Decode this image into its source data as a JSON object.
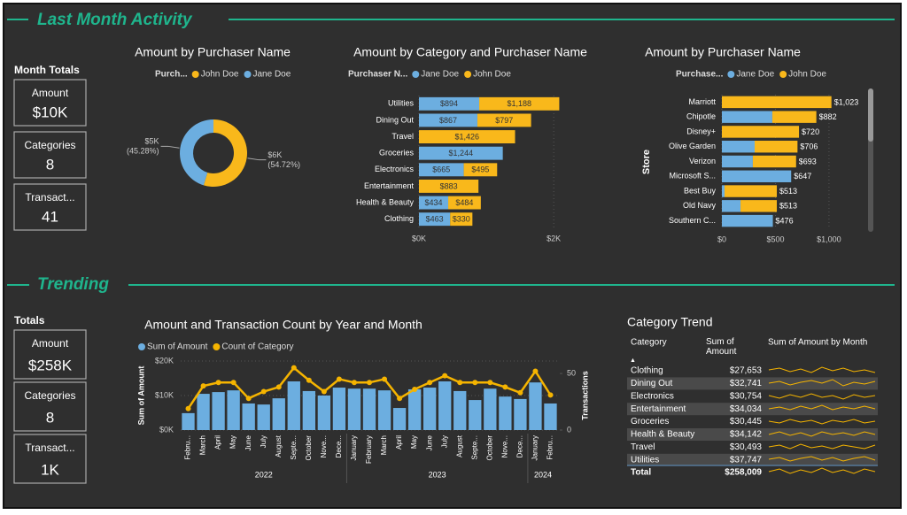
{
  "sections": [
    {
      "title": "Last Month Activity"
    },
    {
      "title": "Trending"
    }
  ],
  "kpis": [
    {
      "heading": "Month Totals",
      "cards": [
        {
          "label": "Amount",
          "value": "$10K"
        },
        {
          "label": "Categories",
          "value": "8"
        },
        {
          "label": "Transact...",
          "value": "41"
        }
      ]
    },
    {
      "heading": "Totals",
      "cards": [
        {
          "label": "Amount",
          "value": "$258K"
        },
        {
          "label": "Categories",
          "value": "8"
        },
        {
          "label": "Transact...",
          "value": "1K"
        }
      ]
    }
  ],
  "chart_data": [
    {
      "type": "donut",
      "title": "Amount by Purchaser Name",
      "legend_title": "Purch...",
      "categories": [
        "John Doe",
        "Jane Doe"
      ],
      "colors": [
        "#F9B81B",
        "#6CAEE0"
      ],
      "values": [
        54.72,
        45.28
      ],
      "value_labels": [
        "(54.72%)",
        "(45.28%)"
      ],
      "amount_labels": [
        "$6K",
        "$5K"
      ]
    },
    {
      "type": "bar",
      "orientation": "horizontal",
      "stacked": true,
      "title": "Amount by Category and Purchaser Name",
      "legend_title": "Purchaser N...",
      "categories": [
        "Utilities",
        "Dining Out",
        "Travel",
        "Groceries",
        "Electronics",
        "Entertainment",
        "Health & Beauty",
        "Clothing"
      ],
      "series": [
        {
          "name": "Jane Doe",
          "color": "#6CAEE0",
          "values": [
            894,
            867,
            null,
            1244,
            665,
            null,
            434,
            463
          ],
          "value_labels": [
            "$894",
            "$867",
            null,
            "$1,244",
            "$665",
            null,
            "$434",
            "$463"
          ]
        },
        {
          "name": "John Doe",
          "color": "#F9B81B",
          "values": [
            1188,
            797,
            1426,
            null,
            495,
            883,
            484,
            330
          ],
          "value_labels": [
            "$1,188",
            "$797",
            "$1,426",
            null,
            "$495",
            "$883",
            "$484",
            "$330"
          ]
        }
      ],
      "xlim": [
        0,
        2300
      ],
      "xticks": [
        {
          "value": 0,
          "label": "$0K"
        },
        {
          "value": 2000,
          "label": "$2K"
        }
      ],
      "grid": true
    },
    {
      "type": "bar",
      "orientation": "horizontal",
      "stacked": true,
      "title": "Amount by Purchaser Name",
      "legend_title": "Purchase...",
      "y_label": "Store",
      "categories": [
        "Marriott",
        "Chipotle",
        "Disney+",
        "Olive Garden",
        "Verizon",
        "Microsoft S...",
        "Best Buy",
        "Old Navy",
        "Southern C..."
      ],
      "series": [
        {
          "name": "Jane Doe",
          "color": "#6CAEE0",
          "values": [
            null,
            471,
            null,
            306,
            289,
            647,
            25,
            174,
            476
          ]
        },
        {
          "name": "John Doe",
          "color": "#F9B81B",
          "values": [
            1023,
            411,
            720,
            400,
            404,
            null,
            488,
            339,
            null
          ]
        }
      ],
      "totals": [
        1023,
        882,
        720,
        706,
        693,
        647,
        513,
        513,
        476
      ],
      "total_labels": [
        "$1,023",
        "$882",
        "$720",
        "$706",
        "$693",
        "$647",
        "$513",
        "$513",
        "$476"
      ],
      "xlim": [
        0,
        1100
      ],
      "xticks": [
        {
          "value": 0,
          "label": "$0"
        },
        {
          "value": 500,
          "label": "$500"
        },
        {
          "value": 1000,
          "label": "$1,000"
        }
      ],
      "grid": true
    },
    {
      "type": "combo",
      "title": "Amount and Transaction Count by Year and Month",
      "y_label": "Sum of Amount",
      "y2_label": "Transactions",
      "groups": [
        {
          "name": "2022",
          "categories": [
            "Febru...",
            "March",
            "April",
            "May",
            "June",
            "July",
            "August",
            "Septe...",
            "October",
            "Nove...",
            "Dece..."
          ]
        },
        {
          "name": "2023",
          "categories": [
            "January",
            "February",
            "March",
            "April",
            "May",
            "June",
            "July",
            "August",
            "Septe...",
            "October",
            "Nove...",
            "Dece..."
          ]
        },
        {
          "name": "2024",
          "categories": [
            "January",
            "Febru..."
          ]
        }
      ],
      "series": [
        {
          "name": "Sum of Amount",
          "type": "bar",
          "color": "#6CAEE0",
          "values": [
            4900,
            10500,
            11000,
            11500,
            7700,
            7400,
            9200,
            14100,
            11300,
            10000,
            12300,
            12000,
            12000,
            11500,
            6400,
            11800,
            12300,
            14100,
            11300,
            8700,
            12000,
            9700,
            9000,
            13800,
            7700
          ]
        },
        {
          "name": "Count of Category",
          "type": "line",
          "axis": "y2",
          "color": "#F5B400",
          "values": [
            19,
            39,
            42,
            42,
            28,
            34,
            38,
            55,
            44,
            34,
            45,
            42,
            42,
            45,
            28,
            36,
            42,
            48,
            42,
            42,
            42,
            38,
            33,
            52,
            31
          ]
        }
      ],
      "ylim": [
        0,
        20000
      ],
      "yticks": [
        {
          "value": 0,
          "label": "$0K"
        },
        {
          "value": 10000,
          "label": "$10K"
        },
        {
          "value": 20000,
          "label": "$20K"
        }
      ],
      "y2lim": [
        0,
        61
      ],
      "y2ticks": [
        0,
        50
      ]
    }
  ],
  "table": {
    "title": "Category Trend",
    "columns": [
      "Category",
      "Sum of Amount",
      "Sum of Amount by Month"
    ],
    "rows": [
      [
        "Clothing",
        "$27,653"
      ],
      [
        "Dining Out",
        "$32,741"
      ],
      [
        "Electronics",
        "$30,754"
      ],
      [
        "Entertainment",
        "$34,034"
      ],
      [
        "Groceries",
        "$30,445"
      ],
      [
        "Health & Beauty",
        "$34,142"
      ],
      [
        "Travel",
        "$30,493"
      ],
      [
        "Utilities",
        "$37,747"
      ]
    ],
    "total": [
      "Total",
      "$258,009"
    ]
  }
}
